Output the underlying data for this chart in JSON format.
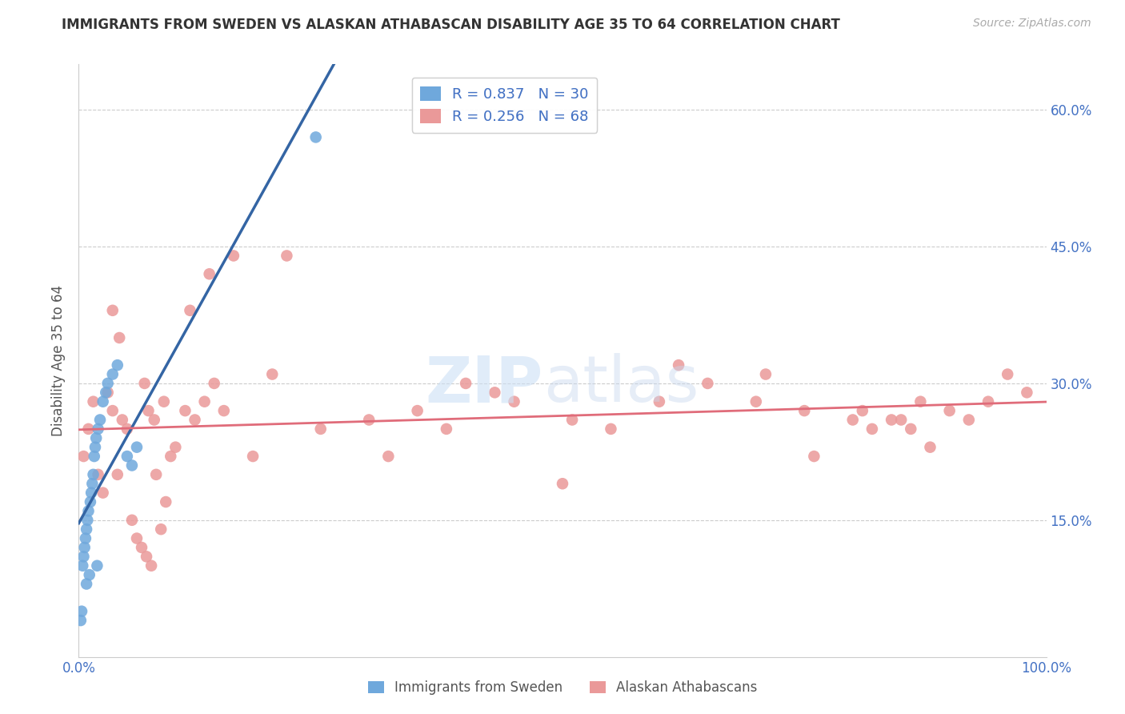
{
  "title": "IMMIGRANTS FROM SWEDEN VS ALASKAN ATHABASCAN DISABILITY AGE 35 TO 64 CORRELATION CHART",
  "source": "Source: ZipAtlas.com",
  "ylabel": "Disability Age 35 to 64",
  "xlim": [
    0.0,
    1.0
  ],
  "ylim": [
    0.0,
    0.65
  ],
  "xticks": [
    0.0,
    0.2,
    0.4,
    0.6,
    0.8,
    1.0
  ],
  "xtick_labels": [
    "0.0%",
    "",
    "",
    "",
    "",
    "100.0%"
  ],
  "yticks": [
    0.0,
    0.15,
    0.3,
    0.45,
    0.6
  ],
  "ytick_labels": [
    "",
    "15.0%",
    "30.0%",
    "45.0%",
    "60.0%"
  ],
  "legend_r1": "R = 0.837",
  "legend_n1": "N = 30",
  "legend_r2": "R = 0.256",
  "legend_n2": "N = 68",
  "blue_color": "#6fa8dc",
  "pink_color": "#ea9999",
  "blue_line_color": "#3465a4",
  "pink_line_color": "#e06c7a",
  "grid_color": "#cccccc",
  "axis_label_color": "#4472c4",
  "sweden_x": [
    0.002,
    0.003,
    0.004,
    0.005,
    0.006,
    0.007,
    0.008,
    0.009,
    0.01,
    0.012,
    0.013,
    0.014,
    0.015,
    0.016,
    0.017,
    0.018,
    0.02,
    0.022,
    0.025,
    0.028,
    0.03,
    0.035,
    0.04,
    0.05,
    0.055,
    0.06,
    0.008,
    0.011,
    0.019,
    0.245
  ],
  "sweden_y": [
    0.04,
    0.05,
    0.1,
    0.11,
    0.12,
    0.13,
    0.14,
    0.15,
    0.16,
    0.17,
    0.18,
    0.19,
    0.2,
    0.22,
    0.23,
    0.24,
    0.25,
    0.26,
    0.28,
    0.29,
    0.3,
    0.31,
    0.32,
    0.22,
    0.21,
    0.23,
    0.08,
    0.09,
    0.1,
    0.57
  ],
  "alaska_x": [
    0.005,
    0.01,
    0.015,
    0.02,
    0.025,
    0.03,
    0.035,
    0.04,
    0.045,
    0.05,
    0.055,
    0.06,
    0.065,
    0.07,
    0.075,
    0.08,
    0.085,
    0.09,
    0.095,
    0.1,
    0.11,
    0.12,
    0.13,
    0.14,
    0.15,
    0.18,
    0.2,
    0.25,
    0.3,
    0.35,
    0.38,
    0.4,
    0.45,
    0.5,
    0.55,
    0.6,
    0.65,
    0.7,
    0.75,
    0.8,
    0.82,
    0.84,
    0.85,
    0.86,
    0.88,
    0.9,
    0.92,
    0.94,
    0.96,
    0.98,
    0.035,
    0.042,
    0.068,
    0.072,
    0.078,
    0.088,
    0.115,
    0.135,
    0.16,
    0.215,
    0.32,
    0.43,
    0.51,
    0.62,
    0.71,
    0.76,
    0.81,
    0.87
  ],
  "alaska_y": [
    0.22,
    0.25,
    0.28,
    0.2,
    0.18,
    0.29,
    0.27,
    0.2,
    0.26,
    0.25,
    0.15,
    0.13,
    0.12,
    0.11,
    0.1,
    0.2,
    0.14,
    0.17,
    0.22,
    0.23,
    0.27,
    0.26,
    0.28,
    0.3,
    0.27,
    0.22,
    0.31,
    0.25,
    0.26,
    0.27,
    0.25,
    0.3,
    0.28,
    0.19,
    0.25,
    0.28,
    0.3,
    0.28,
    0.27,
    0.26,
    0.25,
    0.26,
    0.26,
    0.25,
    0.23,
    0.27,
    0.26,
    0.28,
    0.31,
    0.29,
    0.38,
    0.35,
    0.3,
    0.27,
    0.26,
    0.28,
    0.38,
    0.42,
    0.44,
    0.44,
    0.22,
    0.29,
    0.26,
    0.32,
    0.31,
    0.22,
    0.27,
    0.28
  ],
  "background_color": "#ffffff"
}
